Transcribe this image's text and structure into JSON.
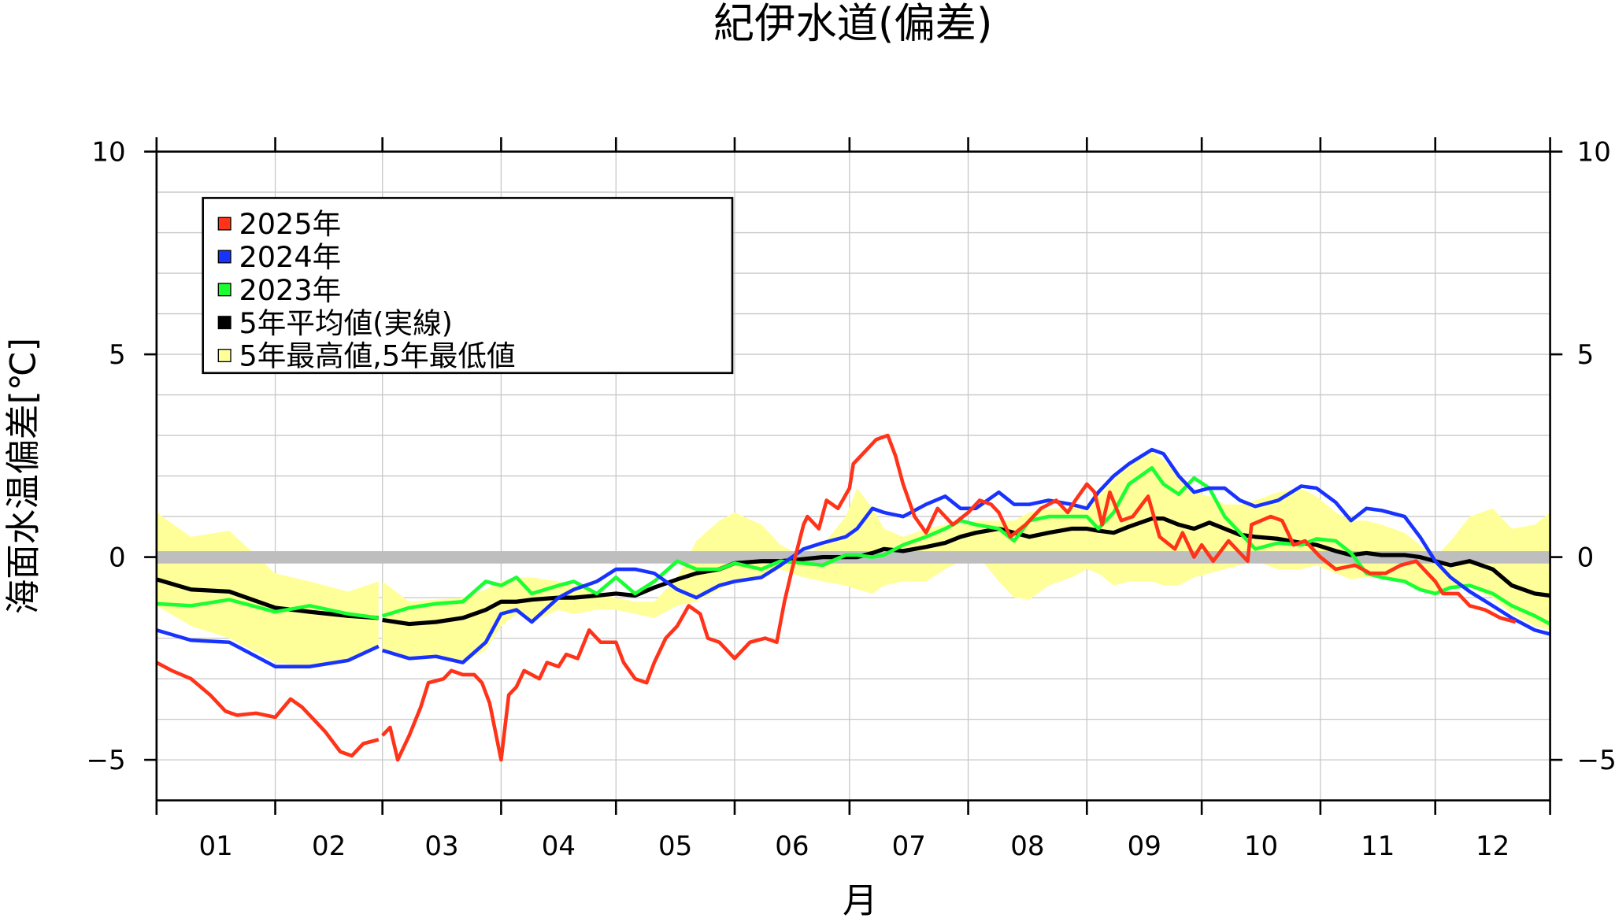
{
  "chart_data": {
    "type": "line",
    "title": "紀伊水道(偏差)",
    "xlabel": "月",
    "ylabel": "海面水温偏差[℃]",
    "ylim": [
      -6,
      10
    ],
    "yticks": [
      10,
      5,
      0,
      -5
    ],
    "ytick_labels": [
      "10",
      "5",
      "0",
      "−5"
    ],
    "xtick_labels": [
      "01",
      "02",
      "03",
      "04",
      "05",
      "06",
      "07",
      "08",
      "09",
      "10",
      "11",
      "12"
    ],
    "grid": true,
    "legend_placement": "top-left",
    "zero_line_color": "#bebebe",
    "legend": [
      {
        "label": "2025年",
        "color": "#ff3319"
      },
      {
        "label": "2024年",
        "color": "#1933ff"
      },
      {
        "label": "2023年",
        "color": "#19ff33"
      },
      {
        "label": "5年平均値(実線)",
        "color": "#000000"
      },
      {
        "label": "5年最高値,5年最低値",
        "color": "#ffff99"
      }
    ],
    "grid_dates": [
      "01-01",
      "01-10",
      "01-20",
      "02-01",
      "02-10",
      "02-20",
      "02-28",
      "03-01",
      "03-08",
      "03-15",
      "03-22",
      "03-28",
      "04-01",
      "04-05",
      "04-09",
      "04-16",
      "04-20",
      "04-26",
      "05-01",
      "05-06",
      "05-11",
      "05-17",
      "05-22",
      "05-28",
      "06-01",
      "06-08",
      "06-13",
      "06-19",
      "06-24",
      "06-30",
      "07-03",
      "07-07",
      "07-10",
      "07-15",
      "07-21",
      "07-26",
      "07-30",
      "08-03",
      "08-09",
      "08-13",
      "08-17",
      "08-22",
      "08-28",
      "09-01",
      "09-04",
      "09-08",
      "09-12",
      "09-18",
      "09-21",
      "09-25",
      "09-29",
      "10-03",
      "10-07",
      "10-11",
      "10-15",
      "10-21",
      "10-27",
      "10-31",
      "11-05",
      "11-09",
      "11-13",
      "11-17",
      "11-23",
      "11-27",
      "12-01",
      "12-05",
      "12-10",
      "12-16",
      "12-21",
      "12-27",
      "12-31"
    ],
    "band": {
      "name": "5年最高値,5年最低値",
      "color": "#ffff99",
      "upper": [
        1.1,
        0.5,
        0.65,
        -0.4,
        -0.6,
        -0.85,
        -0.6,
        -0.6,
        -1.1,
        -1.05,
        -1.0,
        -0.8,
        -0.6,
        -0.5,
        -0.5,
        -0.6,
        -0.7,
        -0.9,
        -1.0,
        -1.1,
        -1.1,
        -0.5,
        0.4,
        0.9,
        1.1,
        0.8,
        0.3,
        0.0,
        0.3,
        1.0,
        1.7,
        1.2,
        0.7,
        0.5,
        0.7,
        0.8,
        0.8,
        0.9,
        0.9,
        0.9,
        1.1,
        1.2,
        1.2,
        1.3,
        1.5,
        1.9,
        2.3,
        2.6,
        2.4,
        2.0,
        1.6,
        1.5,
        1.3,
        1.3,
        1.4,
        1.6,
        1.7,
        1.5,
        1.1,
        0.9,
        0.9,
        0.8,
        0.6,
        0.3,
        0.0,
        0.4,
        1.0,
        1.2,
        0.7,
        0.8,
        1.1
      ],
      "lower": [
        -1.2,
        -1.7,
        -2.0,
        -2.6,
        -2.7,
        -2.6,
        -2.2,
        -2.3,
        -2.5,
        -2.4,
        -2.6,
        -2.3,
        -1.7,
        -1.4,
        -1.6,
        -1.3,
        -1.4,
        -1.3,
        -1.3,
        -1.4,
        -1.5,
        -1.2,
        -1.1,
        -0.8,
        -0.6,
        -0.5,
        -0.3,
        -0.5,
        -0.6,
        -0.7,
        -0.8,
        -0.9,
        -0.7,
        -0.6,
        -0.6,
        -0.3,
        -0.1,
        0.1,
        -0.6,
        -1.0,
        -1.05,
        -0.7,
        -0.5,
        -0.3,
        -0.4,
        -0.7,
        -0.6,
        -0.6,
        -0.7,
        -0.7,
        -0.5,
        -0.4,
        -0.3,
        -0.2,
        -0.1,
        -0.3,
        -0.3,
        -0.2,
        -0.4,
        -0.55,
        -0.5,
        -0.5,
        -0.6,
        -0.8,
        -0.9,
        -0.8,
        -0.75,
        -1.0,
        -1.4,
        -1.7,
        -1.8
      ]
    },
    "series": [
      {
        "name": "5年平均値(実線)",
        "color": "#000000",
        "values": [
          -0.55,
          -0.8,
          -0.85,
          -1.25,
          -1.35,
          -1.45,
          -1.5,
          -1.55,
          -1.65,
          -1.6,
          -1.5,
          -1.3,
          -1.1,
          -1.1,
          -1.05,
          -1.0,
          -1.0,
          -0.95,
          -0.9,
          -0.95,
          -0.75,
          -0.55,
          -0.4,
          -0.3,
          -0.15,
          -0.1,
          -0.1,
          -0.05,
          0.0,
          0.0,
          0.0,
          0.1,
          0.2,
          0.15,
          0.25,
          0.35,
          0.5,
          0.6,
          0.7,
          0.6,
          0.5,
          0.6,
          0.7,
          0.7,
          0.65,
          0.6,
          0.75,
          0.95,
          0.95,
          0.8,
          0.7,
          0.85,
          0.7,
          0.55,
          0.5,
          0.45,
          0.35,
          0.3,
          0.15,
          0.05,
          0.1,
          0.05,
          0.05,
          0.0,
          -0.1,
          -0.2,
          -0.1,
          -0.3,
          -0.7,
          -0.9,
          -0.95
        ]
      },
      {
        "name": "2023年",
        "color": "#19ff33",
        "values": [
          -1.15,
          -1.2,
          -1.05,
          -1.35,
          -1.2,
          -1.4,
          -1.5,
          -1.45,
          -1.25,
          -1.15,
          -1.1,
          -0.6,
          -0.7,
          -0.5,
          -0.9,
          -0.7,
          -0.6,
          -0.9,
          -0.5,
          -0.9,
          -0.6,
          -0.1,
          -0.3,
          -0.3,
          -0.15,
          -0.3,
          -0.1,
          -0.15,
          -0.2,
          0.05,
          0.05,
          0.0,
          0.05,
          0.3,
          0.5,
          0.7,
          0.9,
          0.8,
          0.7,
          0.4,
          0.9,
          1.0,
          1.0,
          1.0,
          0.7,
          1.1,
          1.8,
          2.2,
          1.8,
          1.55,
          1.95,
          1.7,
          1.0,
          0.6,
          0.2,
          0.35,
          0.3,
          0.45,
          0.4,
          0.1,
          -0.4,
          -0.5,
          -0.6,
          -0.8,
          -0.9,
          -0.75,
          -0.7,
          -0.9,
          -1.2,
          -1.45,
          -1.65
        ]
      },
      {
        "name": "2024年",
        "color": "#1933ff",
        "values": [
          -1.8,
          -2.05,
          -2.1,
          -2.7,
          -2.7,
          -2.55,
          -2.2,
          -2.3,
          -2.5,
          -2.45,
          -2.6,
          -2.1,
          -1.4,
          -1.3,
          -1.6,
          -1.0,
          -0.8,
          -0.6,
          -0.3,
          -0.3,
          -0.4,
          -0.8,
          -1.0,
          -0.7,
          -0.6,
          -0.5,
          -0.2,
          0.2,
          0.35,
          0.5,
          0.7,
          1.2,
          1.1,
          1.0,
          1.3,
          1.5,
          1.2,
          1.2,
          1.6,
          1.3,
          1.3,
          1.4,
          1.3,
          1.2,
          1.6,
          2.0,
          2.3,
          2.65,
          2.55,
          2.0,
          1.6,
          1.7,
          1.7,
          1.4,
          1.25,
          1.4,
          1.75,
          1.7,
          1.35,
          0.9,
          1.2,
          1.15,
          1.0,
          0.5,
          -0.1,
          -0.5,
          -0.85,
          -1.2,
          -1.5,
          -1.8,
          -1.9
        ]
      },
      {
        "name": "2025年",
        "color": "#ff3319",
        "points": [
          [
            "01-01",
            -2.6
          ],
          [
            "01-05",
            -2.8
          ],
          [
            "01-10",
            -3.0
          ],
          [
            "01-15",
            -3.4
          ],
          [
            "01-19",
            -3.8
          ],
          [
            "01-22",
            -3.9
          ],
          [
            "01-27",
            -3.85
          ],
          [
            "02-01",
            -3.95
          ],
          [
            "02-05",
            -3.5
          ],
          [
            "02-08",
            -3.7
          ],
          [
            "02-11",
            -4.0
          ],
          [
            "02-14",
            -4.3
          ],
          [
            "02-18",
            -4.8
          ],
          [
            "02-21",
            -4.9
          ],
          [
            "02-24",
            -4.6
          ],
          [
            "02-28",
            -4.5
          ],
          [
            "03-01",
            -4.4
          ],
          [
            "03-03",
            -4.2
          ],
          [
            "03-05",
            -5.0
          ],
          [
            "03-08",
            -4.4
          ],
          [
            "03-11",
            -3.7
          ],
          [
            "03-13",
            -3.1
          ],
          [
            "03-17",
            -3.0
          ],
          [
            "03-19",
            -2.8
          ],
          [
            "03-22",
            -2.9
          ],
          [
            "03-25",
            -2.9
          ],
          [
            "03-27",
            -3.1
          ],
          [
            "03-29",
            -3.6
          ],
          [
            "04-01",
            -5.0
          ],
          [
            "04-03",
            -3.4
          ],
          [
            "04-05",
            -3.2
          ],
          [
            "04-07",
            -2.8
          ],
          [
            "04-09",
            -2.9
          ],
          [
            "04-11",
            -3.0
          ],
          [
            "04-13",
            -2.6
          ],
          [
            "04-16",
            -2.7
          ],
          [
            "04-18",
            -2.4
          ],
          [
            "04-21",
            -2.5
          ],
          [
            "04-24",
            -1.8
          ],
          [
            "04-27",
            -2.1
          ],
          [
            "05-01",
            -2.1
          ],
          [
            "05-03",
            -2.6
          ],
          [
            "05-06",
            -3.0
          ],
          [
            "05-09",
            -3.1
          ],
          [
            "05-11",
            -2.6
          ],
          [
            "05-14",
            -2.0
          ],
          [
            "05-17",
            -1.7
          ],
          [
            "05-20",
            -1.2
          ],
          [
            "05-23",
            -1.4
          ],
          [
            "05-25",
            -2.0
          ],
          [
            "05-28",
            -2.1
          ],
          [
            "06-01",
            -2.5
          ],
          [
            "06-05",
            -2.1
          ],
          [
            "06-09",
            -2.0
          ],
          [
            "06-12",
            -2.1
          ],
          [
            "06-14",
            -1.1
          ],
          [
            "06-16",
            -0.3
          ],
          [
            "06-19",
            0.8
          ],
          [
            "06-20",
            1.0
          ],
          [
            "06-23",
            0.7
          ],
          [
            "06-25",
            1.4
          ],
          [
            "06-28",
            1.2
          ],
          [
            "07-01",
            1.7
          ],
          [
            "07-02",
            2.3
          ],
          [
            "07-06",
            2.7
          ],
          [
            "07-08",
            2.9
          ],
          [
            "07-11",
            3.0
          ],
          [
            "07-13",
            2.5
          ],
          [
            "07-15",
            1.8
          ],
          [
            "07-18",
            1.0
          ],
          [
            "07-21",
            0.6
          ],
          [
            "07-24",
            1.2
          ],
          [
            "07-28",
            0.8
          ],
          [
            "08-01",
            1.1
          ],
          [
            "08-04",
            1.4
          ],
          [
            "08-07",
            1.3
          ],
          [
            "08-09",
            1.1
          ],
          [
            "08-12",
            0.5
          ],
          [
            "08-16",
            0.8
          ],
          [
            "08-20",
            1.2
          ],
          [
            "08-24",
            1.4
          ],
          [
            "08-27",
            1.1
          ],
          [
            "08-29",
            1.4
          ],
          [
            "09-01",
            1.8
          ],
          [
            "09-03",
            1.6
          ],
          [
            "09-05",
            0.8
          ],
          [
            "09-07",
            1.6
          ],
          [
            "09-10",
            0.9
          ],
          [
            "09-13",
            1.0
          ],
          [
            "09-17",
            1.5
          ],
          [
            "09-20",
            0.5
          ],
          [
            "09-24",
            0.2
          ],
          [
            "09-26",
            0.6
          ],
          [
            "09-29",
            0.0
          ],
          [
            "10-01",
            0.3
          ],
          [
            "10-04",
            -0.1
          ],
          [
            "10-08",
            0.4
          ],
          [
            "10-13",
            -0.1
          ],
          [
            "10-14",
            0.8
          ],
          [
            "10-19",
            1.0
          ],
          [
            "10-22",
            0.9
          ],
          [
            "10-25",
            0.3
          ],
          [
            "10-28",
            0.4
          ],
          [
            "11-01",
            0.0
          ],
          [
            "11-05",
            -0.3
          ],
          [
            "11-10",
            -0.2
          ],
          [
            "11-14",
            -0.4
          ],
          [
            "11-18",
            -0.4
          ],
          [
            "11-22",
            -0.2
          ],
          [
            "11-26",
            -0.1
          ],
          [
            "12-01",
            -0.6
          ],
          [
            "12-03",
            -0.9
          ],
          [
            "12-07",
            -0.9
          ],
          [
            "12-10",
            -1.2
          ],
          [
            "12-14",
            -1.3
          ],
          [
            "12-18",
            -1.5
          ],
          [
            "12-22",
            -1.6
          ]
        ]
      }
    ]
  }
}
